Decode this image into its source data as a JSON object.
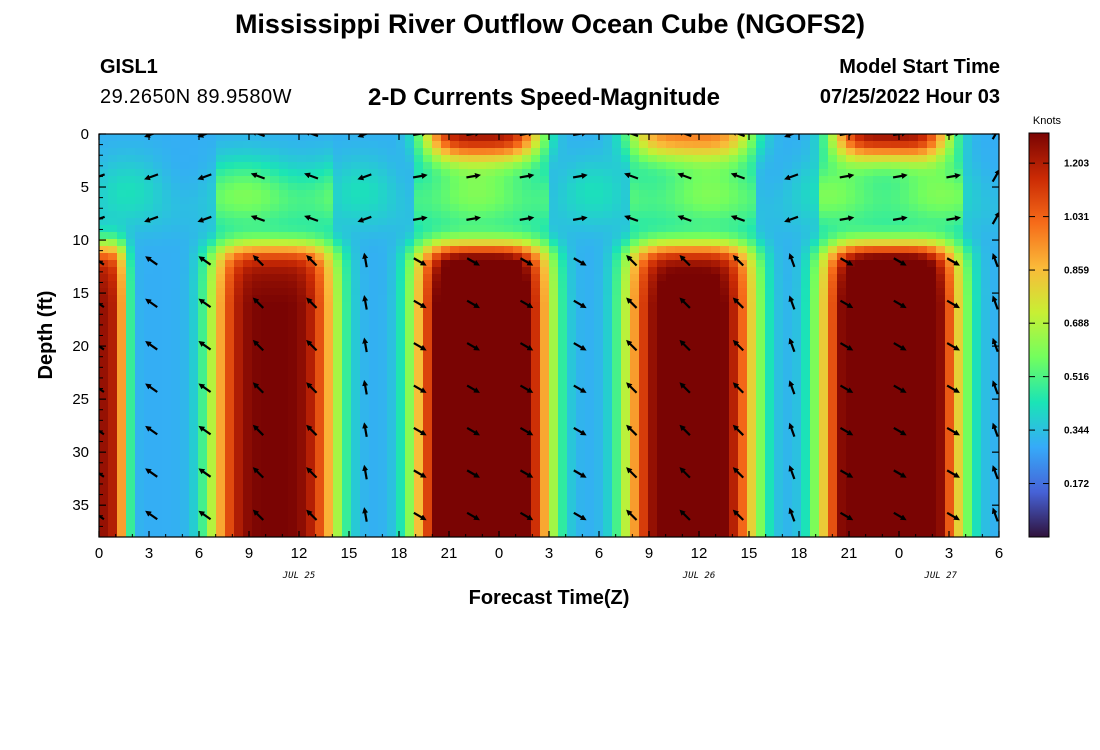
{
  "header": {
    "title": "Mississippi River Outflow Ocean Cube (NGOFS2)",
    "station_id": "GISL1",
    "station_coords": "29.2650N  89.9580W",
    "plot_title": "2-D Currents Speed-Magnitude",
    "model_start_label": "Model Start Time",
    "model_start_value": "07/25/2022 Hour 03"
  },
  "footer": {
    "title": "Mississippi River Outflow Ocean Cube (NGOFS2)"
  },
  "colors": {
    "colormap": [
      "#30123b",
      "#4662d7",
      "#36aaf9",
      "#1ae4b6",
      "#72fe5e",
      "#c8ef34",
      "#faba39",
      "#f66b19",
      "#ca2a04",
      "#7a0403"
    ]
  },
  "chart_data": {
    "type": "heatmap",
    "xlabel": "Forecast Time(Z)",
    "ylabel": "Depth (ft)",
    "xlim": [
      0,
      54
    ],
    "ylim": [
      38,
      0
    ],
    "x_tick_hours": [
      0,
      3,
      6,
      9,
      12,
      15,
      18,
      21,
      24,
      27,
      30,
      33,
      36,
      39,
      42,
      45,
      48,
      51,
      54
    ],
    "x_tick_labels": [
      "0",
      "3",
      "6",
      "9",
      "12",
      "15",
      "18",
      "21",
      "0",
      "3",
      "6",
      "9",
      "12",
      "15",
      "18",
      "21",
      "0",
      "3",
      "6"
    ],
    "y_ticks": [
      0,
      5,
      10,
      15,
      20,
      25,
      30,
      35
    ],
    "y_tick_labels": [
      "0",
      "5",
      "10",
      "15",
      "20",
      "25",
      "30",
      "35"
    ],
    "date_labels": [
      {
        "hour": 12,
        "text": "JUL 25"
      },
      {
        "hour": 36,
        "text": "JUL 26"
      },
      {
        "hour": 50.5,
        "text": "JUL 27"
      }
    ],
    "colorbar": {
      "label": "Knots",
      "vmin": 0,
      "vmax": 1.3,
      "ticks": [
        0.172,
        0.344,
        0.516,
        0.688,
        0.859,
        1.031,
        1.203
      ],
      "tick_labels": [
        "0.172",
        "0.344",
        "0.516",
        "0.688",
        "0.859",
        "1.031",
        "1.203"
      ]
    },
    "speed_model": {
      "bottom_peaks": [
        {
          "hour": 10.5,
          "amp": 1.0,
          "width": 3.2
        },
        {
          "hour": 23.0,
          "amp": 1.24,
          "width": 3.4
        },
        {
          "hour": 35.5,
          "amp": 1.07,
          "width": 3.3
        },
        {
          "hour": 47.5,
          "amp": 1.26,
          "width": 3.5
        }
      ],
      "surface_peaks": [
        {
          "hour": 23.0,
          "amp": 0.9,
          "width": 3.0
        },
        {
          "hour": 35.5,
          "amp": 0.65,
          "width": 3.2
        },
        {
          "hour": 47.5,
          "amp": 0.92,
          "width": 3.0
        }
      ],
      "edge_peaks": [
        {
          "hour": 0.0,
          "amp": 0.95,
          "width": 1.4
        }
      ]
    },
    "vector_rows_ft": [
      0,
      4,
      8,
      12,
      16,
      20,
      24,
      28,
      32,
      36
    ],
    "vector_cols_hours": [
      0,
      3.2,
      6.4,
      9.6,
      12.8,
      16,
      19.2,
      22.4,
      25.6,
      28.8,
      32,
      35.2,
      38.4,
      41.6,
      44.8,
      48,
      51.2,
      53.8
    ],
    "vector_directions": [
      {
        "from_hour": 0,
        "to_hour": 6.5,
        "shallow_deg": 200,
        "deep_deg": 145
      },
      {
        "from_hour": 6.5,
        "to_hour": 14.5,
        "shallow_deg": 160,
        "deep_deg": 135
      },
      {
        "from_hour": 14.5,
        "to_hour": 19,
        "shallow_deg": 200,
        "deep_deg": 100
      },
      {
        "from_hour": 19,
        "to_hour": 30,
        "shallow_deg": 10,
        "deep_deg": -30
      },
      {
        "from_hour": 30,
        "to_hour": 31,
        "shallow_deg": 200,
        "deep_deg": 120
      },
      {
        "from_hour": 31,
        "to_hour": 38.5,
        "shallow_deg": 160,
        "deep_deg": 135
      },
      {
        "from_hour": 38.5,
        "to_hour": 42.5,
        "shallow_deg": 200,
        "deep_deg": 110
      },
      {
        "from_hour": 42.5,
        "to_hour": 52,
        "shallow_deg": 10,
        "deep_deg": -30
      },
      {
        "from_hour": 52,
        "to_hour": 55,
        "shallow_deg": 60,
        "deep_deg": 110
      }
    ]
  }
}
